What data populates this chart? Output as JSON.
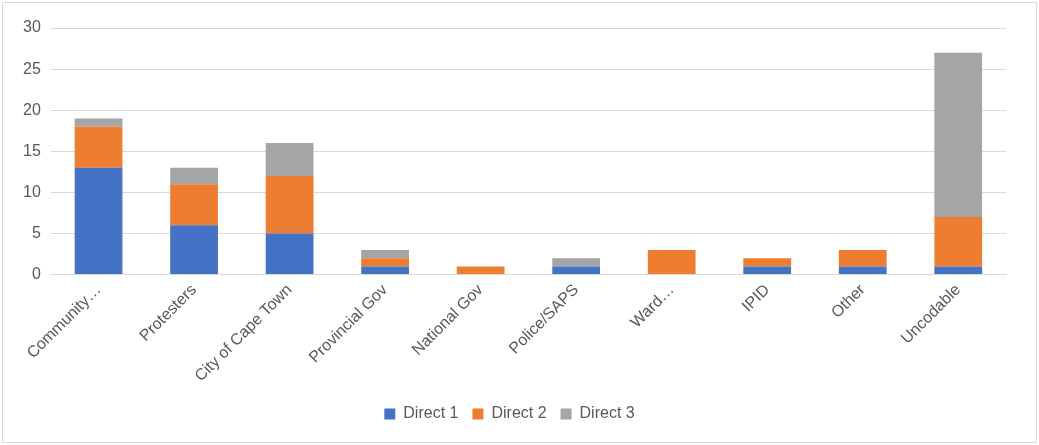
{
  "chart_data": {
    "type": "bar",
    "stacked": true,
    "categories": [
      "Community…",
      "Protesters",
      "City of Cape Town",
      "Provincial Gov",
      "National Gov",
      "Police/SAPS",
      "Ward…",
      "IPID",
      "Other",
      "Uncodable"
    ],
    "series": [
      {
        "name": "Direct 1",
        "color": "#4472c4",
        "values": [
          13,
          6,
          5,
          1,
          0,
          1,
          0,
          1,
          1,
          1
        ]
      },
      {
        "name": "Direct 2",
        "color": "#ed7d31",
        "values": [
          5,
          5,
          7,
          1,
          1,
          0,
          3,
          1,
          2,
          6
        ]
      },
      {
        "name": "Direct 3",
        "color": "#a5a5a5",
        "values": [
          1,
          2,
          4,
          1,
          0,
          1,
          0,
          0,
          0,
          20
        ]
      }
    ],
    "ylim": [
      0,
      30
    ],
    "yticks": [
      0,
      5,
      10,
      15,
      20,
      25,
      30
    ],
    "grid": "y",
    "legend": "bottom"
  }
}
